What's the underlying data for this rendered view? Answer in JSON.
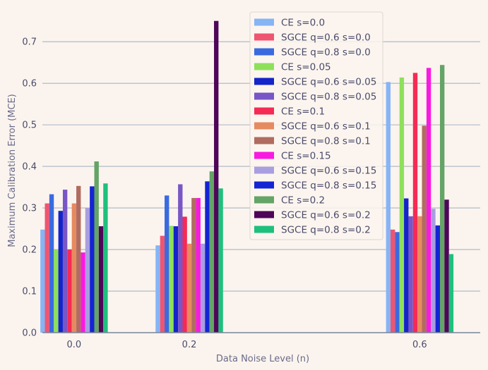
{
  "chart_data": {
    "type": "bar",
    "xlabel": "Data Noise Level (n)",
    "ylabel": "Maximum Calibration Error (MCE)",
    "categories": [
      "0.0",
      "0.2",
      "0.6"
    ],
    "x": [
      0.0,
      0.2,
      0.6
    ],
    "xlim": [
      -0.055,
      0.705
    ],
    "ylim": [
      0,
      0.78
    ],
    "yticks": [
      "0.0",
      "0.1",
      "0.2",
      "0.3",
      "0.4",
      "0.5",
      "0.6",
      "0.7"
    ],
    "grid": "horizontal",
    "legend_position": "top-center",
    "series": [
      {
        "name": "CE s=0.0",
        "color": "#86b4f5",
        "values": [
          0.248,
          0.21,
          0.603
        ]
      },
      {
        "name": "SGCE q=0.6 s=0.0",
        "color": "#ef5570",
        "values": [
          0.311,
          0.233,
          0.248
        ]
      },
      {
        "name": "SGCE q=0.8 s=0.0",
        "color": "#3a6ae0",
        "values": [
          0.333,
          0.33,
          0.242
        ]
      },
      {
        "name": "CE s=0.05",
        "color": "#8ee05a",
        "values": [
          0.2,
          0.257,
          0.614
        ]
      },
      {
        "name": "SGCE q=0.6 s=0.05",
        "color": "#1424c8",
        "values": [
          0.293,
          0.256,
          0.323
        ]
      },
      {
        "name": "SGCE q=0.8 s=0.05",
        "color": "#7856c6",
        "values": [
          0.344,
          0.357,
          0.28
        ]
      },
      {
        "name": "CE s=0.1",
        "color": "#f52a55",
        "values": [
          0.2,
          0.279,
          0.625
        ]
      },
      {
        "name": "SGCE q=0.6 s=0.1",
        "color": "#e68a60",
        "values": [
          0.311,
          0.214,
          0.28
        ]
      },
      {
        "name": "SGCE q=0.8 s=0.1",
        "color": "#b06c60",
        "values": [
          0.353,
          0.324,
          0.498
        ]
      },
      {
        "name": "CE s=0.15",
        "color": "#f81ae0",
        "values": [
          0.193,
          0.324,
          0.637
        ]
      },
      {
        "name": "SGCE q=0.6 s=0.15",
        "color": "#a89ee0",
        "values": [
          0.3,
          0.214,
          0.298
        ]
      },
      {
        "name": "SGCE q=0.8 s=0.15",
        "color": "#1424d4",
        "values": [
          0.352,
          0.364,
          0.258
        ]
      },
      {
        "name": "CE s=0.2",
        "color": "#64a466",
        "values": [
          0.412,
          0.388,
          0.644
        ]
      },
      {
        "name": "SGCE q=0.6 s=0.2",
        "color": "#4e0658",
        "values": [
          0.256,
          0.75,
          0.32
        ]
      },
      {
        "name": "SGCE q=0.8 s=0.2",
        "color": "#1ec07c",
        "values": [
          0.359,
          0.347,
          0.189
        ]
      }
    ]
  }
}
